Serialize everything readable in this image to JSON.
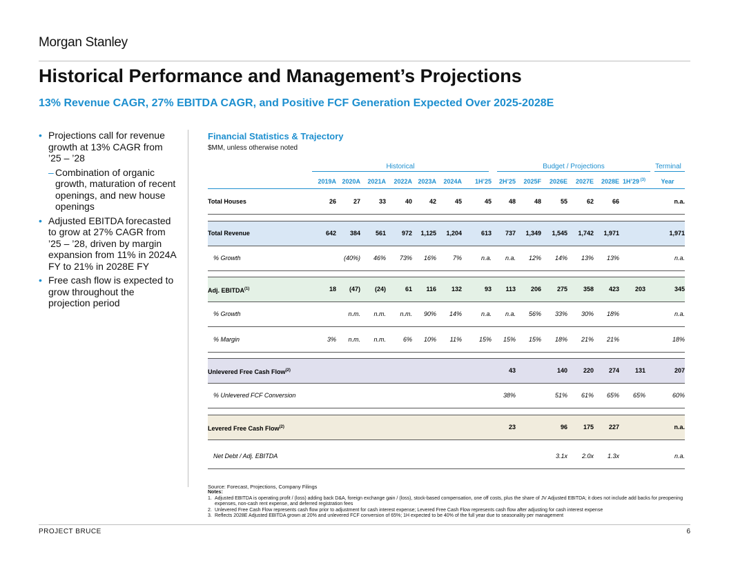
{
  "header": {
    "logo_text": "Morgan Stanley",
    "title": "Historical Performance and Management’s Projections",
    "subtitle": "13% Revenue CAGR, 27% EBITDA CAGR, and Positive FCF Generation Expected Over 2025-2028E"
  },
  "bullets": {
    "b1": "Projections call for revenue growth at 13% CAGR from ’25 – ’28",
    "b1_sub": "Combination of organic growth, maturation of recent openings, and new house openings",
    "b2": "Adjusted EBITDA forecasted to grow at 27% CAGR from ’25 – ’28, driven by margin expansion from 11% in 2024A FY to 21% in 2028E FY",
    "b3": "Free cash flow is expected to grow throughout the projection period"
  },
  "table": {
    "title": "Financial Statistics & Trajectory",
    "subtitle": "$MM, unless otherwise noted",
    "groups": {
      "historical": "Historical",
      "budget": "Budget / Projections",
      "terminal": "Terminal"
    },
    "columns": [
      "2019A",
      "2020A",
      "2021A",
      "2022A",
      "2023A",
      "2024A",
      "1H’25",
      "2H’25",
      "2025F",
      "2026E",
      "2027E",
      "2028E",
      "1H’29",
      "Year"
    ],
    "col_note": "(3)",
    "rows": [
      {
        "label": "Total Houses",
        "values": [
          "26",
          "27",
          "33",
          "40",
          "42",
          "45",
          "45",
          "48",
          "48",
          "55",
          "62",
          "66",
          "",
          "n.a."
        ]
      },
      {
        "label": "Total Revenue",
        "values": [
          "642",
          "384",
          "561",
          "972",
          "1,125",
          "1,204",
          "613",
          "737",
          "1,349",
          "1,545",
          "1,742",
          "1,971",
          "",
          "1,971"
        ]
      },
      {
        "label": "% Growth",
        "values": [
          "",
          "(40%)",
          "46%",
          "73%",
          "16%",
          "7%",
          "n.a.",
          "n.a.",
          "12%",
          "14%",
          "13%",
          "13%",
          "",
          "n.a."
        ]
      },
      {
        "label": "Adj. EBITDA",
        "note": "(1)",
        "values": [
          "18",
          "(47)",
          "(24)",
          "61",
          "116",
          "132",
          "93",
          "113",
          "206",
          "275",
          "358",
          "423",
          "203",
          "345"
        ]
      },
      {
        "label": "% Growth",
        "values": [
          "",
          "n.m.",
          "n.m.",
          "n.m.",
          "90%",
          "14%",
          "n.a.",
          "n.a.",
          "56%",
          "33%",
          "30%",
          "18%",
          "",
          "n.a."
        ]
      },
      {
        "label": "% Margin",
        "values": [
          "3%",
          "n.m.",
          "n.m.",
          "6%",
          "10%",
          "11%",
          "15%",
          "15%",
          "15%",
          "18%",
          "21%",
          "21%",
          "",
          "18%"
        ]
      },
      {
        "label": "Unlevered Free Cash Flow",
        "note": "(2)",
        "values": [
          "",
          "",
          "",
          "",
          "",
          "",
          "",
          "43",
          "",
          "140",
          "220",
          "274",
          "131",
          "207"
        ]
      },
      {
        "label": "% Unlevered FCF Conversion",
        "values": [
          "",
          "",
          "",
          "",
          "",
          "",
          "",
          "38%",
          "",
          "51%",
          "61%",
          "65%",
          "65%",
          "60%"
        ]
      },
      {
        "label": "Levered Free Cash Flow",
        "note": "(2)",
        "values": [
          "",
          "",
          "",
          "",
          "",
          "",
          "",
          "23",
          "",
          "96",
          "175",
          "227",
          "",
          "n.a."
        ]
      },
      {
        "label": "Net Debt / Adj. EBITDA",
        "values": [
          "",
          "",
          "",
          "",
          "",
          "",
          "",
          "",
          "",
          "3.1x",
          "2.0x",
          "1.3x",
          "",
          "n.a."
        ]
      }
    ]
  },
  "source": "Source: Forecast, Projections, Company Filings",
  "notes": {
    "heading": "Notes:",
    "n1_num": "1.",
    "n1": "Adjusted EBITDA is operating profit / (loss) adding back D&A, foreign exchange gain / (loss), stock-based compensation, one off costs, plus the share of JV Adjusted EBITDA; it does not include add backs for preopening expenses, non-cash rent expense, and deferred registration fees",
    "n2_num": "2.",
    "n2": "Unlevered Free Cash Flow represents cash flow prior to adjustment for cash interest expense; Levered Free Cash Flow represents cash flow after adjusting for cash interest expense",
    "n3_num": "3.",
    "n3": "Reflects 2028E Adjusted EBITDA grown at 20% and unlevered FCF conversion of 65%; 1H expected to be 40% of the full year due to seasonality per management"
  },
  "footer": {
    "project": "PROJECT BRUCE",
    "page": "6"
  },
  "colors": {
    "accent": "#1d8fcf",
    "revenue_band": "#d9e7f5",
    "ebitda_band": "#e4f1e6",
    "ufcf_band": "#e0e0ee",
    "lfcf_band": "#f1ecdd"
  }
}
